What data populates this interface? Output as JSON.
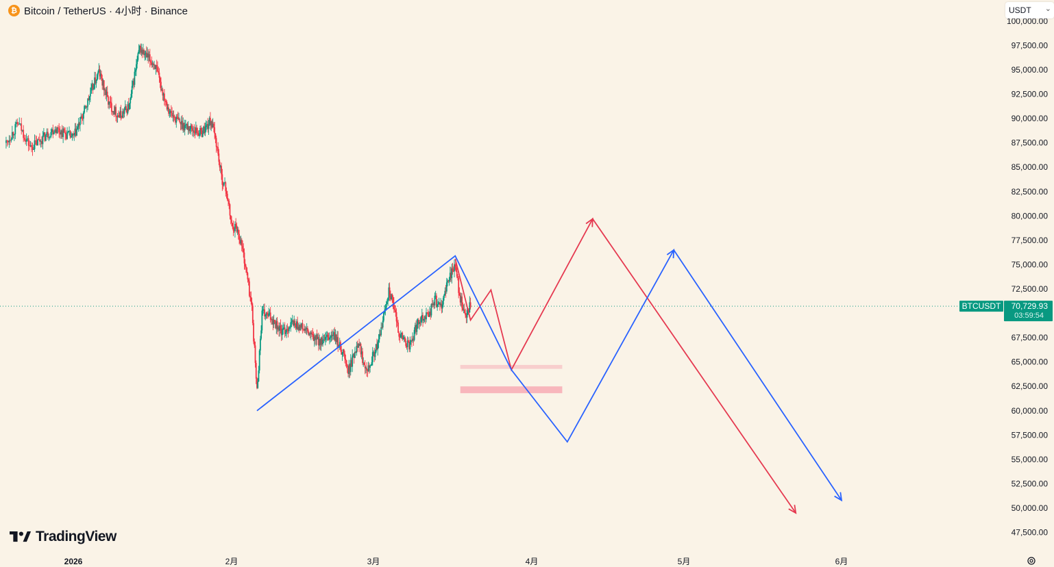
{
  "header": {
    "coin_icon": "bitcoin-icon",
    "title": "Bitcoin / TetherUS · 4小时 · Binance"
  },
  "currency_selector": {
    "value": "USDT",
    "icon": "chevron-down-icon"
  },
  "branding": {
    "logo_text": "TradingView",
    "logo_icon": "tradingview-logo-icon"
  },
  "settings": {
    "icon": "gear-icon"
  },
  "price_tag": {
    "symbol": "BTCUSDT",
    "price": "70,729.93",
    "countdown": "03:59:54",
    "color": "#089981"
  },
  "colors": {
    "background": "#faf3e7",
    "up_candle": "#089981",
    "down_candle": "#f23645",
    "blue_path": "#2962ff",
    "red_path": "#e53950",
    "zone": "#f7a1ad"
  },
  "chart_data": {
    "type": "candlestick",
    "title": "Bitcoin / TetherUS · 4小时 · Binance",
    "exchange": "Binance",
    "interval": "4小时",
    "ylim": [
      47500,
      100000
    ],
    "y_ticks": [
      "47,500.00",
      "50,000.00",
      "52,500.00",
      "55,000.00",
      "57,500.00",
      "60,000.00",
      "62,500.00",
      "65,000.00",
      "67,500.00",
      "72,500.00",
      "75,000.00",
      "77,500.00",
      "80,000.00",
      "82,500.00",
      "85,000.00",
      "87,500.00",
      "90,000.00",
      "92,500.00",
      "95,000.00",
      "97,500.00",
      "100,000.00"
    ],
    "x_ticks": [
      {
        "label": "2026",
        "date": "2026-01-01"
      },
      {
        "label": "2月",
        "date": "2026-02-01"
      },
      {
        "label": "3月",
        "date": "2026-03-01"
      },
      {
        "label": "4月",
        "date": "2026-04-01"
      },
      {
        "label": "5月",
        "date": "2026-05-01"
      },
      {
        "label": "6月",
        "date": "2026-06-01"
      }
    ],
    "last_price": 70729.93,
    "close_path": [
      [
        "2025-12-21",
        87500
      ],
      [
        "2025-12-23",
        89500
      ],
      [
        "2025-12-25",
        87000
      ],
      [
        "2025-12-27",
        88000
      ],
      [
        "2025-12-29",
        89000
      ],
      [
        "2026-01-01",
        88000
      ],
      [
        "2026-01-03",
        90500
      ],
      [
        "2026-01-05",
        93500
      ],
      [
        "2026-01-06",
        94800
      ],
      [
        "2026-01-08",
        91500
      ],
      [
        "2026-01-10",
        90200
      ],
      [
        "2026-01-12",
        91300
      ],
      [
        "2026-01-13",
        94500
      ],
      [
        "2026-01-14",
        97200
      ],
      [
        "2026-01-15",
        96500
      ],
      [
        "2026-01-17",
        95500
      ],
      [
        "2026-01-18",
        93500
      ],
      [
        "2026-01-20",
        90500
      ],
      [
        "2026-01-22",
        89500
      ],
      [
        "2026-01-24",
        89000
      ],
      [
        "2026-01-26",
        88500
      ],
      [
        "2026-01-28",
        89800
      ],
      [
        "2026-01-29",
        87500
      ],
      [
        "2026-01-30",
        84000
      ],
      [
        "2026-01-31",
        82500
      ],
      [
        "2026-02-01",
        79000
      ],
      [
        "2026-02-02",
        78800
      ],
      [
        "2026-02-03",
        77000
      ],
      [
        "2026-02-04",
        74000
      ],
      [
        "2026-02-05",
        70500
      ],
      [
        "2026-02-06",
        62000
      ],
      [
        "2026-02-07",
        70000
      ],
      [
        "2026-02-09",
        69500
      ],
      [
        "2026-02-11",
        68000
      ],
      [
        "2026-02-13",
        69000
      ],
      [
        "2026-02-15",
        68500
      ],
      [
        "2026-02-17",
        67500
      ],
      [
        "2026-02-19",
        67000
      ],
      [
        "2026-02-21",
        67800
      ],
      [
        "2026-02-23",
        66000
      ],
      [
        "2026-02-24",
        64000
      ],
      [
        "2026-02-25",
        65500
      ],
      [
        "2026-02-26",
        67300
      ],
      [
        "2026-02-27",
        65000
      ],
      [
        "2026-02-28",
        64500
      ],
      [
        "2026-03-02",
        67000
      ],
      [
        "2026-03-04",
        72500
      ],
      [
        "2026-03-05",
        70500
      ],
      [
        "2026-03-06",
        68000
      ],
      [
        "2026-03-08",
        66500
      ],
      [
        "2026-03-10",
        69500
      ],
      [
        "2026-03-12",
        70000
      ],
      [
        "2026-03-13",
        71500
      ],
      [
        "2026-03-14",
        70500
      ],
      [
        "2026-03-15",
        72000
      ],
      [
        "2026-03-16",
        74000
      ],
      [
        "2026-03-17",
        74800
      ],
      [
        "2026-03-18",
        71500
      ],
      [
        "2026-03-19",
        69500
      ],
      [
        "2026-03-20",
        70800
      ]
    ],
    "drawings": {
      "blue_path": [
        [
          "2026-02-06",
          60000
        ],
        [
          "2026-03-17",
          75900
        ],
        [
          "2026-03-28",
          64200
        ],
        [
          "2026-04-08",
          56800
        ],
        [
          "2026-04-29",
          76500
        ],
        [
          "2026-06-01",
          50800
        ]
      ],
      "red_path": [
        [
          "2026-03-17",
          75600
        ],
        [
          "2026-03-20",
          69300
        ],
        [
          "2026-03-24",
          72400
        ],
        [
          "2026-03-28",
          64200
        ],
        [
          "2026-04-13",
          79700
        ],
        [
          "2026-05-23",
          49500
        ]
      ],
      "zones": [
        {
          "from": "2026-03-18",
          "to": "2026-04-07",
          "low": 64300,
          "high": 64700
        },
        {
          "from": "2026-03-18",
          "to": "2026-04-07",
          "low": 61800,
          "high": 62500
        }
      ]
    }
  }
}
